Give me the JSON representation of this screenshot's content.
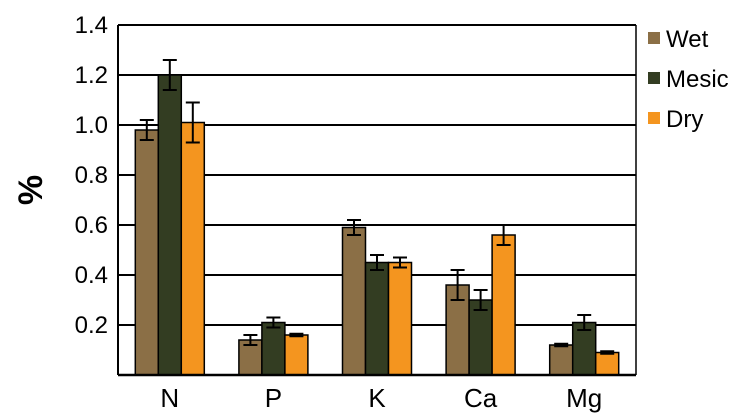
{
  "chart_data": {
    "type": "bar",
    "title": "",
    "xlabel": "",
    "ylabel": "%",
    "ylim": [
      0,
      1.4
    ],
    "yticks": [
      "1.4",
      "1.2",
      "1.0",
      "0.8",
      "0.6",
      "0.4",
      "0.2"
    ],
    "grid": true,
    "legend_position": "right",
    "categories": [
      "N",
      "P",
      "K",
      "Ca",
      "Mg"
    ],
    "series": [
      {
        "name": "Wet",
        "color": "#8b6f46",
        "values": [
          0.98,
          0.14,
          0.59,
          0.36,
          0.12
        ],
        "errors": [
          0.04,
          0.02,
          0.03,
          0.06,
          0.005
        ]
      },
      {
        "name": "Mesic",
        "color": "#333d22",
        "values": [
          1.2,
          0.21,
          0.45,
          0.3,
          0.21
        ],
        "errors": [
          0.06,
          0.02,
          0.03,
          0.04,
          0.03
        ]
      },
      {
        "name": "Dry",
        "color": "#f4951f",
        "values": [
          1.01,
          0.16,
          0.45,
          0.56,
          0.09
        ],
        "errors": [
          0.08,
          0.005,
          0.02,
          0.04,
          0.005
        ]
      }
    ]
  }
}
